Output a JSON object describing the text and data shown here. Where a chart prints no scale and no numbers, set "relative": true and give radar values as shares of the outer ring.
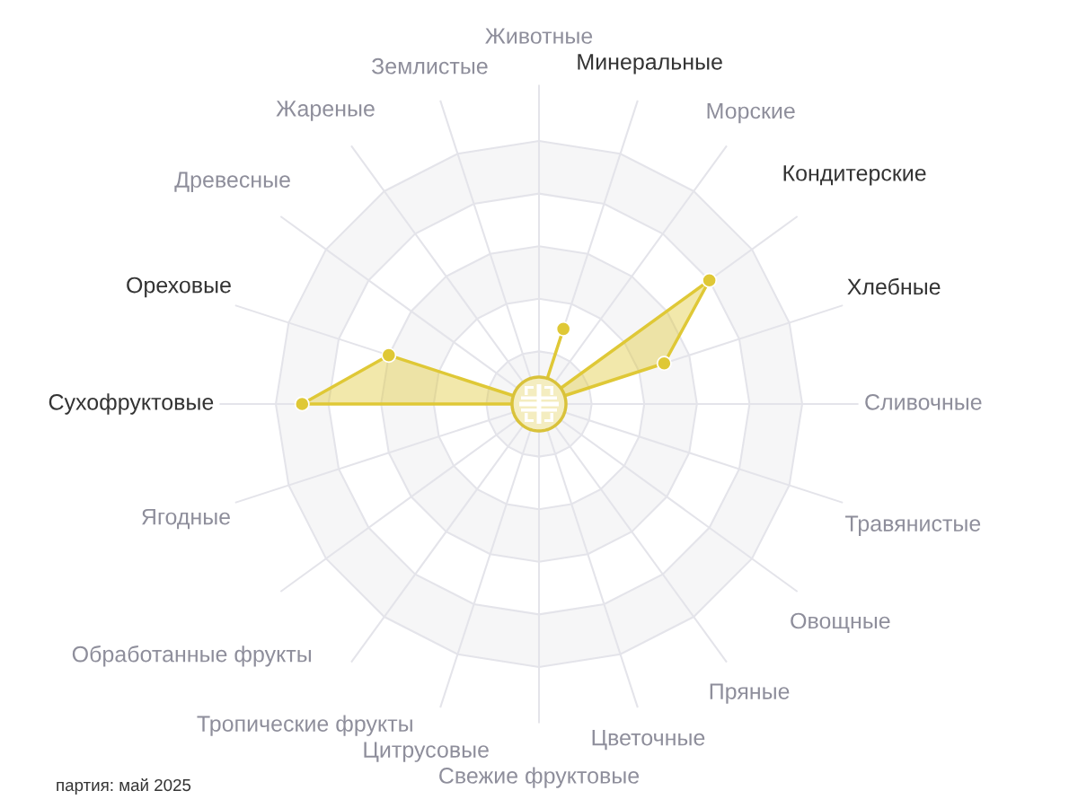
{
  "chart_data": {
    "type": "radar",
    "categories": [
      "Животные",
      "Минеральные",
      "Морские",
      "Кондитерские",
      "Хлебные",
      "Сливочные",
      "Травянистые",
      "Овощные",
      "Пряные",
      "Цветочные",
      "Свежие фруктовые",
      "Цитрусовые",
      "Тропические фрукты",
      "Обработанные фрукты",
      "Ягодные",
      "Сухофруктовые",
      "Ореховые",
      "Древесные",
      "Жареные",
      "Землистые"
    ],
    "series": [
      {
        "color": "#dfc836",
        "values": [
          0,
          0.3,
          0,
          0.8,
          0.5,
          0,
          0,
          0,
          0,
          0,
          0,
          0,
          0,
          0,
          0,
          0.9,
          0.6,
          0,
          0,
          0
        ]
      }
    ],
    "relative": true,
    "grid": true,
    "marker": "circle",
    "annotations": [
      "партия: май 2025"
    ]
  }
}
